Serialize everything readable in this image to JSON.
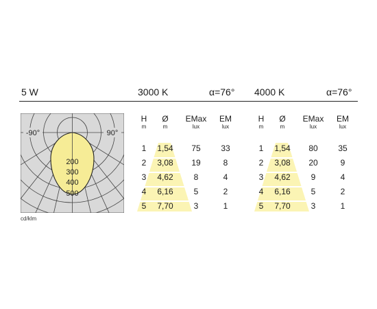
{
  "header": {
    "power": "5 W",
    "blocks": [
      {
        "cct": "3000 K",
        "alpha": "α=76°"
      },
      {
        "cct": "4000 K",
        "alpha": "α=76°"
      }
    ]
  },
  "polar": {
    "angle_left": "-90°",
    "angle_right": "90°",
    "rings": [
      "200",
      "300",
      "400",
      "500"
    ],
    "unit": "cd/klm",
    "colors": {
      "lobe": "#f6ec96",
      "lobe_stroke": "#222222",
      "bg": "#d9d9d9",
      "grid": "#444444"
    }
  },
  "table": {
    "headers": [
      {
        "label": "H",
        "unit": "m"
      },
      {
        "label": "Ø",
        "unit": "m"
      },
      {
        "label": "EMax",
        "unit": "lux"
      },
      {
        "label": "EM",
        "unit": "lux"
      }
    ],
    "highlight_color": "#fbf4b4",
    "blocks": [
      {
        "rows": [
          [
            "1",
            "1,54",
            "75",
            "33"
          ],
          [
            "2",
            "3,08",
            "19",
            "8"
          ],
          [
            "3",
            "4,62",
            "8",
            "4"
          ],
          [
            "4",
            "6,16",
            "5",
            "2"
          ],
          [
            "5",
            "7,70",
            "3",
            "1"
          ]
        ]
      },
      {
        "rows": [
          [
            "1",
            "1,54",
            "80",
            "35"
          ],
          [
            "2",
            "3,08",
            "20",
            "9"
          ],
          [
            "3",
            "4,62",
            "9",
            "4"
          ],
          [
            "4",
            "6,16",
            "5",
            "2"
          ],
          [
            "5",
            "7,70",
            "3",
            "1"
          ]
        ]
      }
    ]
  }
}
